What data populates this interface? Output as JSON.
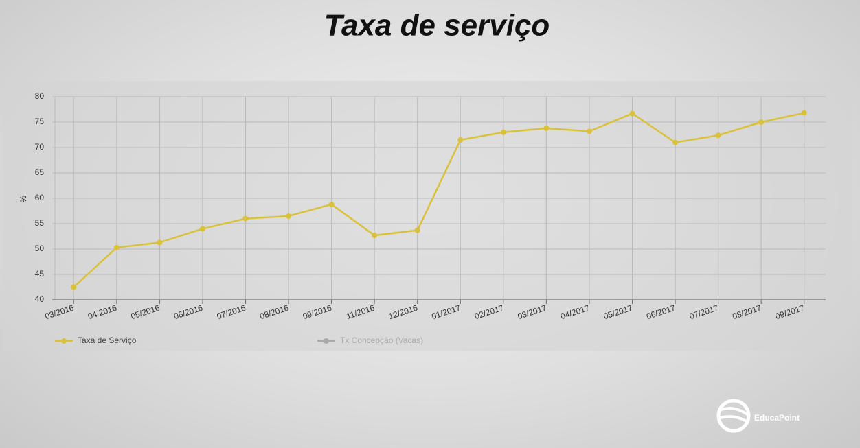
{
  "chart_data": {
    "type": "line",
    "title": "Taxa de serviço",
    "y_label": "%",
    "categories": [
      "03/2016",
      "04/2016",
      "05/2016",
      "06/2016",
      "07/2016",
      "08/2016",
      "09/2016",
      "11/2016",
      "12/2016",
      "01/2017",
      "02/2017",
      "03/2017",
      "04/2017",
      "05/2017",
      "06/2017",
      "07/2017",
      "08/2017",
      "09/2017"
    ],
    "series": [
      {
        "name": "Taxa de Serviço",
        "color": "#d9c23a",
        "values": [
          42.5,
          50.3,
          51.3,
          54,
          56,
          56.5,
          58.8,
          52.7,
          53.7,
          71.5,
          73,
          73.8,
          73.2,
          76.7,
          71,
          72.4,
          75,
          76.8
        ]
      },
      {
        "name": "Tx Concepção (Vacas)",
        "color": "#a9a9a9",
        "hidden": true,
        "values": [
          null,
          null,
          null,
          null,
          null,
          null,
          null,
          null,
          null,
          null,
          null,
          null,
          null,
          null,
          null,
          null,
          null,
          null
        ]
      }
    ],
    "ylim": [
      40,
      80
    ],
    "yticks": [
      40,
      45,
      50,
      55,
      60,
      65,
      70,
      75,
      80
    ],
    "grid": true
  },
  "branding": {
    "logo": "EducaPoint"
  }
}
